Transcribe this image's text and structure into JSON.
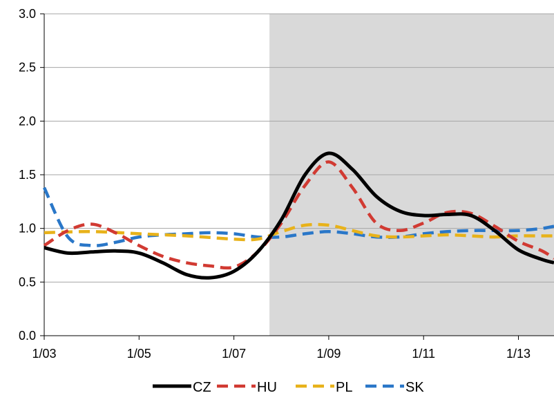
{
  "chart_data": {
    "type": "line",
    "title": "",
    "xlabel": "",
    "ylabel": "",
    "ylim": [
      0,
      3
    ],
    "xlim": [
      "2003-01",
      "2013-10"
    ],
    "x_ticks": [
      {
        "value": "2003-01",
        "label": "1/03"
      },
      {
        "value": "2005-01",
        "label": "1/05"
      },
      {
        "value": "2007-01",
        "label": "1/07"
      },
      {
        "value": "2009-01",
        "label": "1/09"
      },
      {
        "value": "2011-01",
        "label": "1/11"
      },
      {
        "value": "2013-01",
        "label": "1/13"
      }
    ],
    "y_ticks": [
      "0.0",
      "0.5",
      "1.0",
      "1.5",
      "2.0",
      "2.5",
      "3.0"
    ],
    "grid": "horizontal",
    "legend_position": "bottom",
    "shaded_region": {
      "from": "2007-10",
      "to": "2013-10",
      "color": "#d9d9d9"
    },
    "series": [
      {
        "name": "CZ",
        "color": "#000000",
        "style": "solid",
        "x": [
          "2003-01",
          "2003-07",
          "2004-01",
          "2004-07",
          "2005-01",
          "2005-07",
          "2006-01",
          "2006-07",
          "2007-01",
          "2007-07",
          "2008-01",
          "2008-07",
          "2009-01",
          "2009-07",
          "2010-01",
          "2010-07",
          "2011-01",
          "2011-07",
          "2012-01",
          "2012-07",
          "2013-01",
          "2013-07",
          "2013-10"
        ],
        "values": [
          0.82,
          0.77,
          0.78,
          0.79,
          0.77,
          0.68,
          0.57,
          0.54,
          0.6,
          0.78,
          1.08,
          1.5,
          1.7,
          1.55,
          1.3,
          1.16,
          1.12,
          1.13,
          1.12,
          0.98,
          0.8,
          0.71,
          0.68
        ]
      },
      {
        "name": "HU",
        "color": "#d13a32",
        "style": "dashed",
        "x": [
          "2003-01",
          "2003-07",
          "2004-01",
          "2004-07",
          "2005-01",
          "2005-07",
          "2006-01",
          "2006-07",
          "2007-01",
          "2007-07",
          "2008-01",
          "2008-07",
          "2009-01",
          "2009-07",
          "2010-01",
          "2010-07",
          "2011-01",
          "2011-07",
          "2012-01",
          "2012-07",
          "2013-01",
          "2013-07",
          "2013-10"
        ],
        "values": [
          0.84,
          0.98,
          1.04,
          0.96,
          0.84,
          0.74,
          0.68,
          0.65,
          0.64,
          0.78,
          1.05,
          1.4,
          1.62,
          1.38,
          1.05,
          0.98,
          1.05,
          1.15,
          1.14,
          1.02,
          0.88,
          0.79,
          0.72
        ]
      },
      {
        "name": "PL",
        "color": "#e8b21a",
        "style": "dashed",
        "x": [
          "2003-01",
          "2004-01",
          "2005-01",
          "2006-01",
          "2007-01",
          "2007-07",
          "2008-01",
          "2008-07",
          "2009-01",
          "2009-07",
          "2010-01",
          "2010-07",
          "2011-01",
          "2011-07",
          "2012-01",
          "2012-07",
          "2013-01",
          "2013-07",
          "2013-10"
        ],
        "values": [
          0.96,
          0.97,
          0.95,
          0.93,
          0.9,
          0.9,
          0.97,
          1.03,
          1.03,
          0.98,
          0.93,
          0.92,
          0.93,
          0.94,
          0.93,
          0.92,
          0.93,
          0.93,
          0.93
        ]
      },
      {
        "name": "SK",
        "color": "#2a77c8",
        "style": "dashed",
        "x": [
          "2003-01",
          "2003-07",
          "2004-01",
          "2004-07",
          "2005-01",
          "2005-07",
          "2006-01",
          "2006-07",
          "2007-01",
          "2007-07",
          "2008-01",
          "2008-07",
          "2009-01",
          "2009-07",
          "2010-01",
          "2010-07",
          "2011-01",
          "2011-07",
          "2012-01",
          "2012-07",
          "2013-01",
          "2013-07",
          "2013-10"
        ],
        "values": [
          1.38,
          0.92,
          0.84,
          0.87,
          0.92,
          0.94,
          0.95,
          0.96,
          0.95,
          0.92,
          0.92,
          0.95,
          0.97,
          0.95,
          0.92,
          0.92,
          0.95,
          0.97,
          0.98,
          0.98,
          0.98,
          1.0,
          1.02
        ]
      }
    ]
  }
}
